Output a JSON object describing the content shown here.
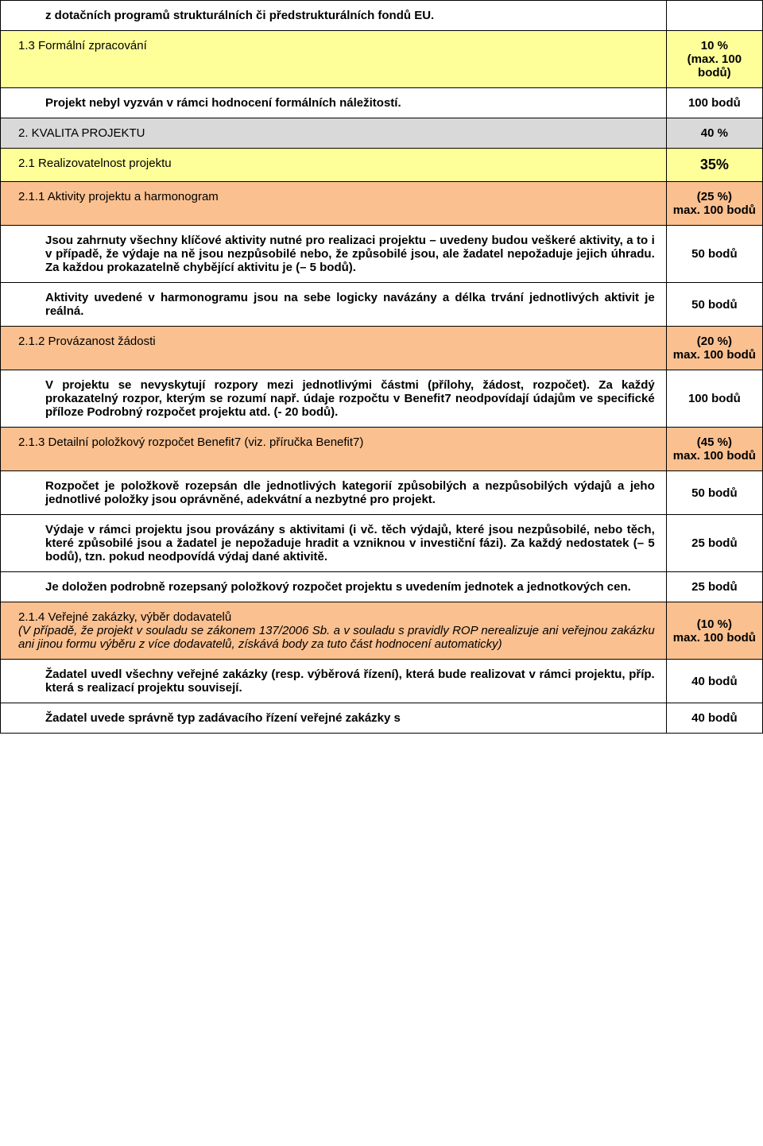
{
  "colors": {
    "yellow": "#ffff99",
    "orange": "#fac090",
    "gray": "#d9d9d9",
    "white": "#ffffff",
    "border": "#000000"
  },
  "rows": {
    "r0": {
      "text": "z dotačních programů strukturálních či předstrukturálních fondů EU.",
      "val": ""
    },
    "r1": {
      "text": "1.3 Formální zpracování",
      "val": "10 %\n(max. 100 bodů)"
    },
    "r2": {
      "text": "Projekt nebyl vyzván v rámci hodnocení formálních náležitostí.",
      "val": "100 bodů"
    },
    "r3": {
      "text": "2. KVALITA PROJEKTU",
      "val": "40 %"
    },
    "r4": {
      "text": "2.1 Realizovatelnost projektu",
      "val": "35%"
    },
    "r5": {
      "text": "2.1.1 Aktivity projektu a harmonogram",
      "val": "(25 %)\nmax. 100 bodů"
    },
    "r6": {
      "text": "Jsou zahrnuty všechny klíčové aktivity nutné pro realizaci projektu – uvedeny budou veškeré aktivity, a to i v případě, že výdaje na ně jsou nezpůsobilé nebo, že způsobilé jsou, ale žadatel nepožaduje jejich úhradu. Za každou prokazatelně chybějící aktivitu je  (– 5 bodů).",
      "val": "50 bodů"
    },
    "r7": {
      "text": "Aktivity uvedené v harmonogramu jsou na sebe logicky navázány a délka trvání jednotlivých aktivit je reálná.",
      "val": "50 bodů"
    },
    "r8": {
      "text": "2.1.2 Provázanost žádosti",
      "val": "(20 %)\nmax. 100 bodů"
    },
    "r9": {
      "text": "V projektu se nevyskytují rozpory mezi jednotlivými částmi (přílohy, žádost, rozpočet). Za každý prokazatelný rozpor, kterým se rozumí např. údaje rozpočtu v Benefit7 neodpovídají údajům ve specifické příloze Podrobný rozpočet projektu atd.  (- 20 bodů).",
      "val": "100 bodů"
    },
    "r10": {
      "text": "2.1.3 Detailní položkový rozpočet Benefit7 (viz. příručka Benefit7)",
      "val": "(45 %)\nmax. 100 bodů"
    },
    "r11": {
      "text": "Rozpočet je položkově rozepsán dle jednotlivých kategorií způsobilých a nezpůsobilých výdajů a jeho jednotlivé položky jsou oprávněné, adekvátní a nezbytné pro projekt.",
      "val": "50 bodů"
    },
    "r12": {
      "text": "Výdaje v rámci projektu jsou provázány s aktivitami (i vč. těch výdajů, které jsou nezpůsobilé, nebo těch, které způsobilé jsou a žadatel je nepožaduje hradit a vzniknou v investiční fázi). Za každý nedostatek (– 5 bodů), tzn. pokud neodpovídá výdaj dané aktivitě.",
      "val": "25 bodů"
    },
    "r13": {
      "text": "Je doložen podrobně rozepsaný položkový rozpočet projektu s uvedením jednotek a jednotkových cen.",
      "val": "25 bodů"
    },
    "r14a": {
      "text": "2.1.4 Veřejné zakázky, výběr dodavatelů"
    },
    "r14b": {
      "text": "(V případě, že projekt v souladu se zákonem 137/2006 Sb. a v souladu s pravidly ROP nerealizuje ani veřejnou zakázku ani jinou formu výběru z více dodavatelů, získává body za tuto část hodnocení automaticky)"
    },
    "r14v": {
      "val": "(10 %)\nmax. 100 bodů"
    },
    "r15": {
      "text": "Žadatel uvedl všechny veřejné zakázky (resp. výběrová řízení), která bude realizovat v rámci projektu, příp. která s realizací projektu souvisejí.",
      "val": "40 bodů"
    },
    "r16": {
      "text": "Žadatel uvede správně typ zadávacího řízení veřejné zakázky s",
      "val": "40 bodů"
    }
  }
}
